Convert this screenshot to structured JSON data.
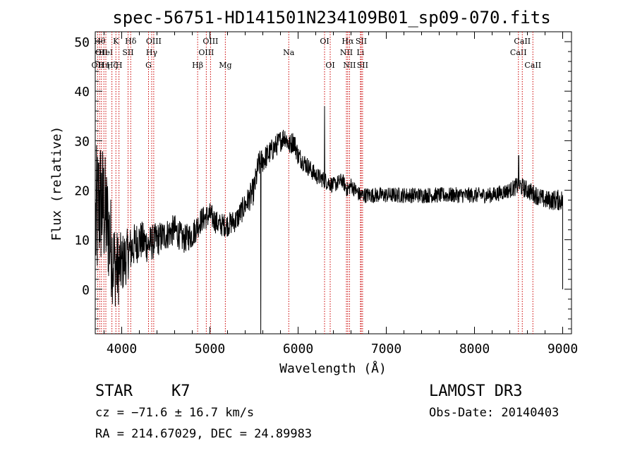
{
  "chart_data": {
    "type": "line",
    "title": "spec-56751-HD141501N234109B01_sp09-070.fits",
    "xlabel": "Wavelength (Å)",
    "ylabel": "Flux (relative)",
    "xlim": [
      3700,
      9100
    ],
    "ylim": [
      -9,
      52
    ],
    "x_ticks": [
      4000,
      5000,
      6000,
      7000,
      8000,
      9000
    ],
    "x_tick_labels": [
      "4000",
      "5000",
      "6000",
      "7000",
      "8000",
      "9000"
    ],
    "y_ticks": [
      0,
      10,
      20,
      30,
      40,
      50
    ],
    "y_tick_labels": [
      "0",
      "10",
      "20",
      "30",
      "40",
      "50"
    ],
    "spectrum_anchors": {
      "x": [
        3700,
        3750,
        3800,
        3850,
        3900,
        3950,
        4000,
        4100,
        4200,
        4300,
        4400,
        4500,
        4600,
        4700,
        4800,
        4900,
        5000,
        5100,
        5200,
        5300,
        5400,
        5500,
        5550,
        5600,
        5700,
        5800,
        5850,
        5900,
        5950,
        6000,
        6100,
        6200,
        6300,
        6400,
        6500,
        6560,
        6600,
        6700,
        6800,
        7000,
        7200,
        7400,
        7600,
        7800,
        8000,
        8200,
        8400,
        8500,
        8600,
        8700,
        8800,
        8900,
        9000
      ],
      "y": [
        12,
        18,
        16,
        12,
        6,
        4,
        5,
        8,
        10,
        9,
        10,
        11,
        12,
        10,
        11,
        14,
        15,
        13,
        13,
        14,
        17,
        20,
        25,
        26,
        28,
        30,
        31,
        29,
        30,
        27,
        25,
        23,
        22,
        21,
        22,
        20,
        21,
        19,
        19,
        19,
        19,
        19,
        19,
        19,
        19,
        19,
        20,
        21,
        20,
        19,
        18,
        18,
        18
      ],
      "noise_amplitude": [
        10,
        9,
        8,
        7,
        6,
        5,
        4,
        3,
        2.6,
        2.4,
        2.2,
        2,
        2,
        1.8,
        1.8,
        1.6,
        1.6,
        1.5,
        1.5,
        1.5,
        1.6,
        1.8,
        1.8,
        1.6,
        1.5,
        1.4,
        1.4,
        1.4,
        1.4,
        1.3,
        1.2,
        1.1,
        1.1,
        1,
        1,
        1,
        1,
        1,
        1,
        1,
        1,
        1,
        1,
        1,
        1,
        1,
        1,
        1.2,
        1.2,
        1.2,
        1.2,
        1.3,
        1.4
      ]
    },
    "spikes": [
      {
        "x": 5577,
        "y": -9
      },
      {
        "x": 6300,
        "y": 37
      },
      {
        "x": 8500,
        "y": 27
      }
    ],
    "line_markers": [
      {
        "x": 3727,
        "label": "OII",
        "row": 3
      },
      {
        "x": 3750,
        "label": "Hθ",
        "row": 1
      },
      {
        "x": 3770,
        "label": "OII",
        "row": 2
      },
      {
        "x": 3798,
        "label": "Hη",
        "row": 3
      },
      {
        "x": 3820,
        "label": "HeI",
        "row": 2
      },
      {
        "x": 3889,
        "label": "Hζ",
        "row": 3
      },
      {
        "x": 3934,
        "label": "K",
        "row": 1
      },
      {
        "x": 3969,
        "label": "H",
        "row": 3
      },
      {
        "x": 4072,
        "label": "SII",
        "row": 2
      },
      {
        "x": 4102,
        "label": "Hδ",
        "row": 1
      },
      {
        "x": 4304,
        "label": "G",
        "row": 3
      },
      {
        "x": 4340,
        "label": "Hγ",
        "row": 2
      },
      {
        "x": 4363,
        "label": "OIII",
        "row": 1
      },
      {
        "x": 4861,
        "label": "Hβ",
        "row": 3
      },
      {
        "x": 4959,
        "label": "OIII",
        "row": 2
      },
      {
        "x": 5007,
        "label": "OIII",
        "row": 1
      },
      {
        "x": 5175,
        "label": "Mg",
        "row": 3
      },
      {
        "x": 5894,
        "label": "Na",
        "row": 2
      },
      {
        "x": 6300,
        "label": "OI",
        "row": 1
      },
      {
        "x": 6364,
        "label": "OI",
        "row": 3
      },
      {
        "x": 6548,
        "label": "NII",
        "row": 2
      },
      {
        "x": 6563,
        "label": "Hα",
        "row": 1
      },
      {
        "x": 6583,
        "label": "NII",
        "row": 3
      },
      {
        "x": 6707,
        "label": "Li",
        "row": 2
      },
      {
        "x": 6716,
        "label": "SII",
        "row": 1
      },
      {
        "x": 6731,
        "label": "SII",
        "row": 3
      },
      {
        "x": 8498,
        "label": "CaII",
        "row": 2
      },
      {
        "x": 8542,
        "label": "CaII",
        "row": 1
      },
      {
        "x": 8662,
        "label": "CaII",
        "row": 3
      }
    ]
  },
  "info": {
    "class": "STAR",
    "subclass": "K7",
    "survey": "LAMOST DR3",
    "redshift": "cz = −71.6 ± 16.7 km/s",
    "obs_date": "Obs-Date: 20140403",
    "coords": "RA = 214.67029, DEC =  24.89983"
  }
}
